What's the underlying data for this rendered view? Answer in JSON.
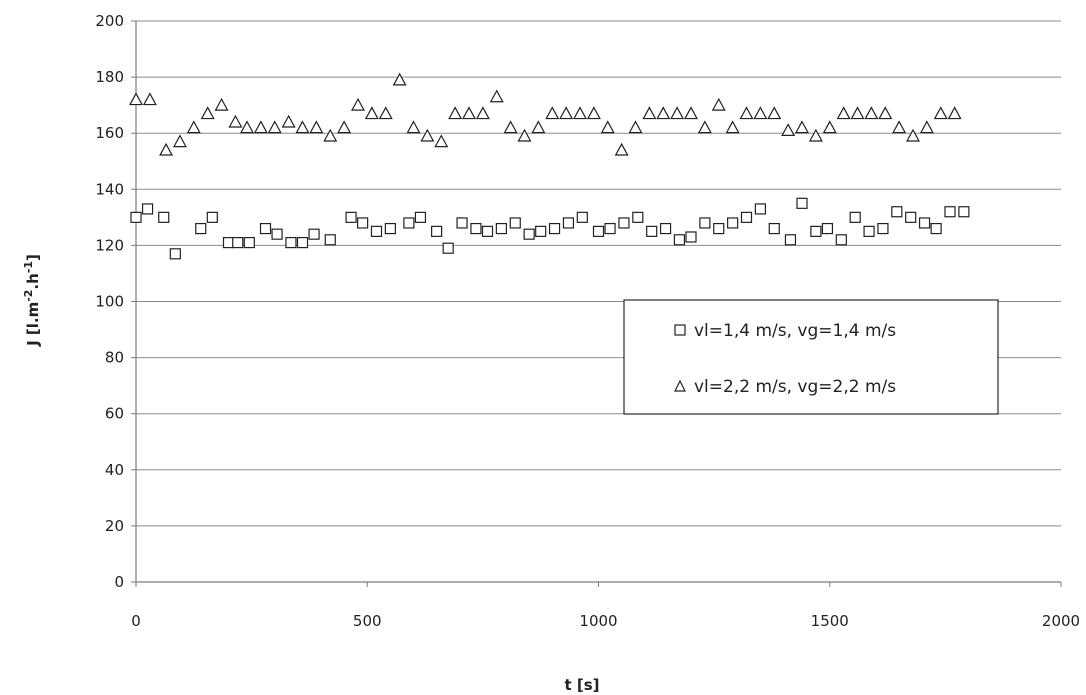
{
  "chart_data": {
    "type": "scatter",
    "title": "",
    "xlabel": "t [s]",
    "ylabel": "J [l.m-2.h-1]",
    "ylabel_parts": {
      "a": "J [l.m",
      "sup1": "-2",
      "b": ".h",
      "sup2": "-1",
      "c": "]"
    },
    "xlim": [
      0,
      2000
    ],
    "ylim": [
      0,
      200
    ],
    "x_ticks": [
      0,
      500,
      1000,
      1500,
      2000
    ],
    "y_ticks": [
      0,
      20,
      40,
      60,
      80,
      100,
      120,
      140,
      160,
      180,
      200
    ],
    "grid": "horizontal",
    "legend_position": "center-right",
    "series": [
      {
        "name": "vl=1,4 m/s, vg=1,4 m/s",
        "marker": "square",
        "x": [
          0,
          25,
          60,
          85,
          140,
          165,
          200,
          220,
          245,
          280,
          305,
          335,
          360,
          385,
          420,
          465,
          490,
          520,
          550,
          590,
          615,
          650,
          675,
          705,
          735,
          760,
          790,
          820,
          850,
          875,
          905,
          935,
          965,
          1000,
          1025,
          1055,
          1085,
          1115,
          1145,
          1175,
          1200,
          1230,
          1260,
          1290,
          1320,
          1350,
          1380,
          1415,
          1440,
          1470,
          1495,
          1525,
          1555,
          1585,
          1615,
          1645,
          1675,
          1705,
          1730,
          1760,
          1790
        ],
        "y": [
          130,
          133,
          130,
          117,
          126,
          130,
          121,
          121,
          121,
          126,
          124,
          121,
          121,
          124,
          122,
          130,
          128,
          125,
          126,
          128,
          130,
          125,
          119,
          128,
          126,
          125,
          126,
          128,
          124,
          125,
          126,
          128,
          130,
          125,
          126,
          128,
          130,
          125,
          126,
          122,
          123,
          128,
          126,
          128,
          130,
          133,
          126,
          122,
          135,
          125,
          126,
          122,
          130,
          125,
          126,
          132,
          130,
          128,
          126,
          132,
          132
        ]
      },
      {
        "name": "vl=2,2 m/s, vg=2,2 m/s",
        "marker": "triangle",
        "x": [
          0,
          30,
          65,
          95,
          125,
          155,
          185,
          215,
          240,
          270,
          300,
          330,
          360,
          390,
          420,
          450,
          480,
          510,
          540,
          570,
          600,
          630,
          660,
          690,
          720,
          750,
          780,
          810,
          840,
          870,
          900,
          930,
          960,
          990,
          1020,
          1050,
          1080,
          1110,
          1140,
          1170,
          1200,
          1230,
          1260,
          1290,
          1320,
          1350,
          1380,
          1410,
          1440,
          1470,
          1500,
          1530,
          1560,
          1590,
          1620,
          1650,
          1680,
          1710,
          1740,
          1770
        ],
        "y": [
          172,
          172,
          154,
          157,
          162,
          167,
          170,
          164,
          162,
          162,
          162,
          164,
          162,
          162,
          159,
          162,
          170,
          167,
          167,
          179,
          162,
          159,
          157,
          167,
          167,
          167,
          173,
          162,
          159,
          162,
          167,
          167,
          167,
          167,
          162,
          154,
          162,
          167,
          167,
          167,
          167,
          162,
          170,
          162,
          167,
          167,
          167,
          161,
          162,
          159,
          162,
          167,
          167,
          167,
          167,
          162,
          159,
          162,
          167,
          167
        ]
      }
    ]
  }
}
